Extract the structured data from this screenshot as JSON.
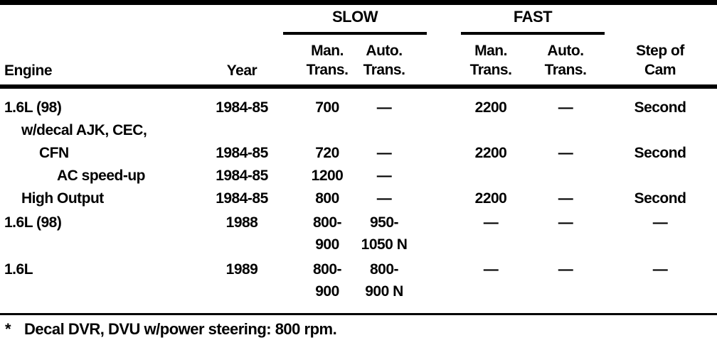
{
  "page": {
    "background": "#ffffff",
    "text_color": "#000000"
  },
  "table": {
    "group_headers": {
      "slow": "SLOW",
      "fast": "FAST"
    },
    "columns": {
      "engine": "Engine",
      "year": "Year",
      "slow_man": "Man.\nTrans.",
      "slow_auto": "Auto.\nTrans.",
      "fast_man": "Man.\nTrans.",
      "fast_auto": "Auto.\nTrans.",
      "cam": "Step of\nCam"
    },
    "rows": [
      {
        "engine": "1.6L (98)",
        "year": "1984-85",
        "slow_man": "700",
        "slow_auto": "—",
        "fast_man": "2200",
        "fast_auto": "—",
        "cam": "Second"
      },
      {
        "engine": "w/decal AJK, CEC,",
        "year": "",
        "slow_man": "",
        "slow_auto": "",
        "fast_man": "",
        "fast_auto": "",
        "cam": ""
      },
      {
        "engine": "CFN",
        "year": "1984-85",
        "slow_man": "720",
        "slow_auto": "—",
        "fast_man": "2200",
        "fast_auto": "—",
        "cam": "Second"
      },
      {
        "engine": "AC speed-up",
        "year": "1984-85",
        "slow_man": "1200",
        "slow_auto": "—",
        "fast_man": "",
        "fast_auto": "",
        "cam": ""
      },
      {
        "engine": "High Output",
        "year": "1984-85",
        "slow_man": "800",
        "slow_auto": "—",
        "fast_man": "2200",
        "fast_auto": "—",
        "cam": "Second"
      },
      {
        "engine": "1.6L (98)",
        "year": "1988",
        "slow_man": "800-\n900",
        "slow_auto": "950-\n1050 N",
        "fast_man": "—",
        "fast_auto": "—",
        "cam": "—"
      },
      {
        "engine": "1.6L",
        "year": "1989",
        "slow_man": "800-\n900",
        "slow_auto": "800-\n900 N",
        "fast_man": "—",
        "fast_auto": "—",
        "cam": "—"
      }
    ]
  },
  "footnote": {
    "marker": "*",
    "text": "Decal DVR, DVU w/power steering: 800 rpm."
  }
}
